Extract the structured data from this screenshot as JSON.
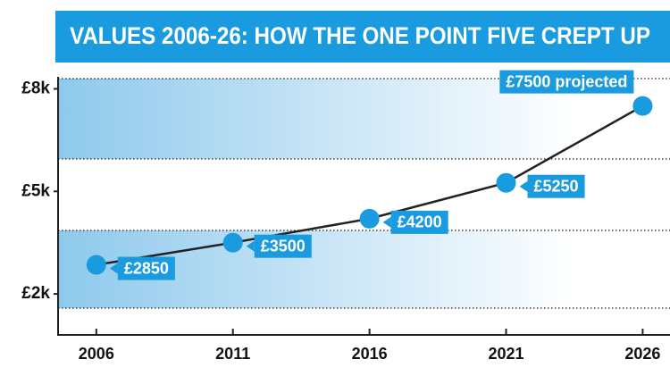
{
  "chart_data": {
    "type": "line",
    "title": "VALUES 2006-26: HOW THE ONE POINT FIVE CREPT UP",
    "x": [
      2006,
      2011,
      2016,
      2021,
      2026
    ],
    "values": [
      2850,
      3500,
      4200,
      5250,
      7500
    ],
    "value_labels": [
      "£2850",
      "£3500",
      "£4200",
      "£5250",
      "£7500 projected"
    ],
    "color": "#1a9be0",
    "xlim": [
      2004.6,
      2027
    ],
    "xticks": [
      2006,
      2011,
      2016,
      2021,
      2026
    ],
    "ylim": [
      800,
      8300
    ],
    "yticks": [
      {
        "value": 2000,
        "label": "£2k"
      },
      {
        "value": 5000,
        "label": "£5k"
      },
      {
        "value": 8000,
        "label": "£8k"
      }
    ]
  }
}
